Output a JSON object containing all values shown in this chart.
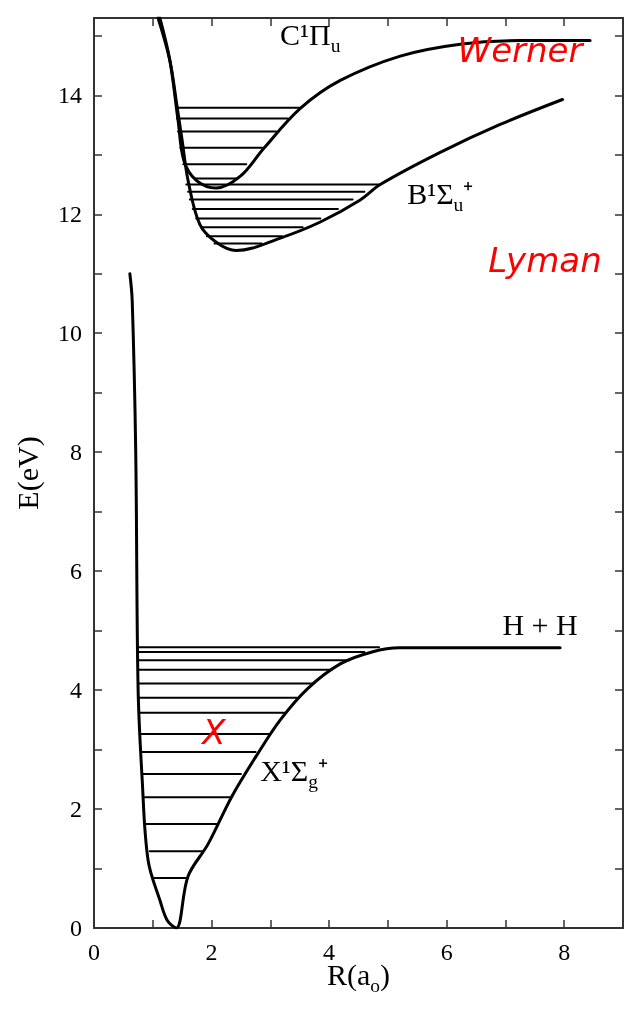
{
  "chart_data": {
    "type": "line",
    "xlabel": "R(a$_{o}$)",
    "ylabel": "E(eV)",
    "xlim": [
      0,
      9
    ],
    "ylim": [
      0,
      15.3
    ],
    "xticks": [
      0,
      {
        "value": 1,
        "label": null
      },
      2,
      {
        "value": 3,
        "label": null
      },
      4,
      {
        "value": 5,
        "label": null
      },
      6,
      {
        "value": 7,
        "label": null
      },
      8
    ],
    "yticks": [
      0,
      {
        "value": 1,
        "label": null
      },
      2,
      {
        "value": 3,
        "label": null
      },
      4,
      {
        "value": 5,
        "label": null
      },
      6,
      {
        "value": 7,
        "label": null
      },
      8,
      {
        "value": 9,
        "label": null
      },
      10,
      {
        "value": 11,
        "label": null
      },
      12,
      {
        "value": 13,
        "label": null
      },
      14,
      {
        "value": 15,
        "label": null
      }
    ],
    "grid": false,
    "marker": "none",
    "line_style": "solid",
    "series": [
      {
        "color": "#000000",
        "x": [
          1.4,
          3.51
        ],
        "values": [
          13.79,
          13.79
        ]
      },
      {
        "color": "#000000",
        "x": [
          1.41,
          3.3
        ],
        "values": [
          13.61,
          13.61
        ]
      },
      {
        "color": "#000000",
        "x": [
          1.43,
          3.1
        ],
        "values": [
          13.39,
          13.39
        ]
      },
      {
        "color": "#000000",
        "x": [
          1.47,
          2.86
        ],
        "values": [
          13.12,
          13.12
        ]
      },
      {
        "color": "#000000",
        "x": [
          1.52,
          2.59
        ],
        "values": [
          12.84,
          12.84
        ]
      },
      {
        "color": "#000000",
        "x": [
          1.72,
          2.45
        ],
        "values": [
          12.6,
          12.6
        ]
      },
      {
        "color": "#000000",
        "x": [
          1.57,
          4.87
        ],
        "values": [
          12.5,
          12.5
        ]
      },
      {
        "color": "#000000",
        "x": [
          1.6,
          4.6
        ],
        "values": [
          12.38,
          12.38
        ]
      },
      {
        "color": "#000000",
        "x": [
          1.63,
          4.4
        ],
        "values": [
          12.25,
          12.25
        ]
      },
      {
        "color": "#000000",
        "x": [
          1.68,
          4.15
        ],
        "values": [
          12.09,
          12.09
        ]
      },
      {
        "color": "#000000",
        "x": [
          1.74,
          3.85
        ],
        "values": [
          11.93,
          11.93
        ]
      },
      {
        "color": "#000000",
        "x": [
          1.82,
          3.55
        ],
        "values": [
          11.78,
          11.78
        ]
      },
      {
        "color": "#000000",
        "x": [
          1.92,
          3.2
        ],
        "values": [
          11.63,
          11.63
        ]
      },
      {
        "color": "#000000",
        "x": [
          2.05,
          2.85
        ],
        "values": [
          11.51,
          11.51
        ]
      },
      {
        "color": "#000000",
        "x": [
          0.76,
          4.85
        ],
        "values": [
          4.72,
          4.72
        ]
      },
      {
        "color": "#000000",
        "x": [
          0.76,
          4.6
        ],
        "values": [
          4.64,
          4.64
        ]
      },
      {
        "color": "#000000",
        "x": [
          0.76,
          4.35
        ],
        "values": [
          4.5,
          4.5
        ]
      },
      {
        "color": "#000000",
        "x": [
          0.76,
          4.05
        ],
        "values": [
          4.34,
          4.34
        ]
      },
      {
        "color": "#000000",
        "x": [
          0.77,
          3.72
        ],
        "values": [
          4.11,
          4.11
        ]
      },
      {
        "color": "#000000",
        "x": [
          0.77,
          3.45
        ],
        "values": [
          3.87,
          3.87
        ]
      },
      {
        "color": "#000000",
        "x": [
          0.78,
          3.25
        ],
        "values": [
          3.62,
          3.62
        ]
      },
      {
        "color": "#000000",
        "x": [
          0.79,
          2.98
        ],
        "values": [
          3.26,
          3.26
        ]
      },
      {
        "color": "#000000",
        "x": [
          0.8,
          2.75
        ],
        "values": [
          2.96,
          2.96
        ]
      },
      {
        "color": "#000000",
        "x": [
          0.82,
          2.5
        ],
        "values": [
          2.59,
          2.59
        ]
      },
      {
        "color": "#000000",
        "x": [
          0.85,
          2.33
        ],
        "values": [
          2.2,
          2.2
        ]
      },
      {
        "color": "#000000",
        "x": [
          0.88,
          2.1
        ],
        "values": [
          1.75,
          1.75
        ]
      },
      {
        "color": "#000000",
        "x": [
          0.95,
          1.85
        ],
        "values": [
          1.29,
          1.29
        ]
      },
      {
        "color": "#000000",
        "x": [
          1.03,
          1.6
        ],
        "values": [
          0.84,
          0.84
        ]
      },
      {
        "name": "X¹Σ$_{g}$⁺",
        "color": "#000000",
        "x": [
          0.61,
          0.65,
          0.71,
          0.75,
          0.82,
          0.92,
          1.12,
          1.25,
          1.4,
          1.6,
          1.94,
          2.35,
          2.76,
          3.17,
          3.64,
          4.19,
          4.73,
          5.2,
          7.93
        ],
        "values": [
          11.0,
          10.55,
          8.0,
          4.03,
          2.49,
          1.14,
          0.47,
          0.12,
          0,
          0.87,
          1.41,
          2.22,
          2.89,
          3.5,
          4.03,
          4.44,
          4.64,
          4.71,
          4.71
        ]
      },
      {
        "name": "B¹Σ$_{u}$⁺",
        "color": "#000000",
        "x": [
          1.09,
          1.29,
          1.4,
          1.5,
          1.6,
          1.8,
          2.08,
          2.42,
          3.17,
          3.85,
          4.53,
          4.87,
          5.89,
          6.91,
          7.97
        ],
        "values": [
          15.3,
          14.59,
          13.9,
          13.24,
          12.57,
          11.83,
          11.53,
          11.39,
          11.6,
          11.87,
          12.24,
          12.5,
          13.04,
          13.51,
          13.93
        ]
      },
      {
        "name": "C¹Π$_{u}$",
        "color": "#000000",
        "x": [
          1.12,
          1.29,
          1.43,
          1.53,
          1.74,
          2.08,
          2.49,
          2.89,
          3.51,
          4.19,
          5.21,
          6.23,
          7.25,
          8.44
        ],
        "values": [
          15.3,
          14.59,
          13.58,
          12.9,
          12.57,
          12.44,
          12.64,
          13.11,
          13.78,
          14.25,
          14.66,
          14.86,
          14.92,
          14.92
        ]
      }
    ],
    "annotations": [
      "H + H",
      "Werner",
      "Lyman",
      "X"
    ]
  }
}
